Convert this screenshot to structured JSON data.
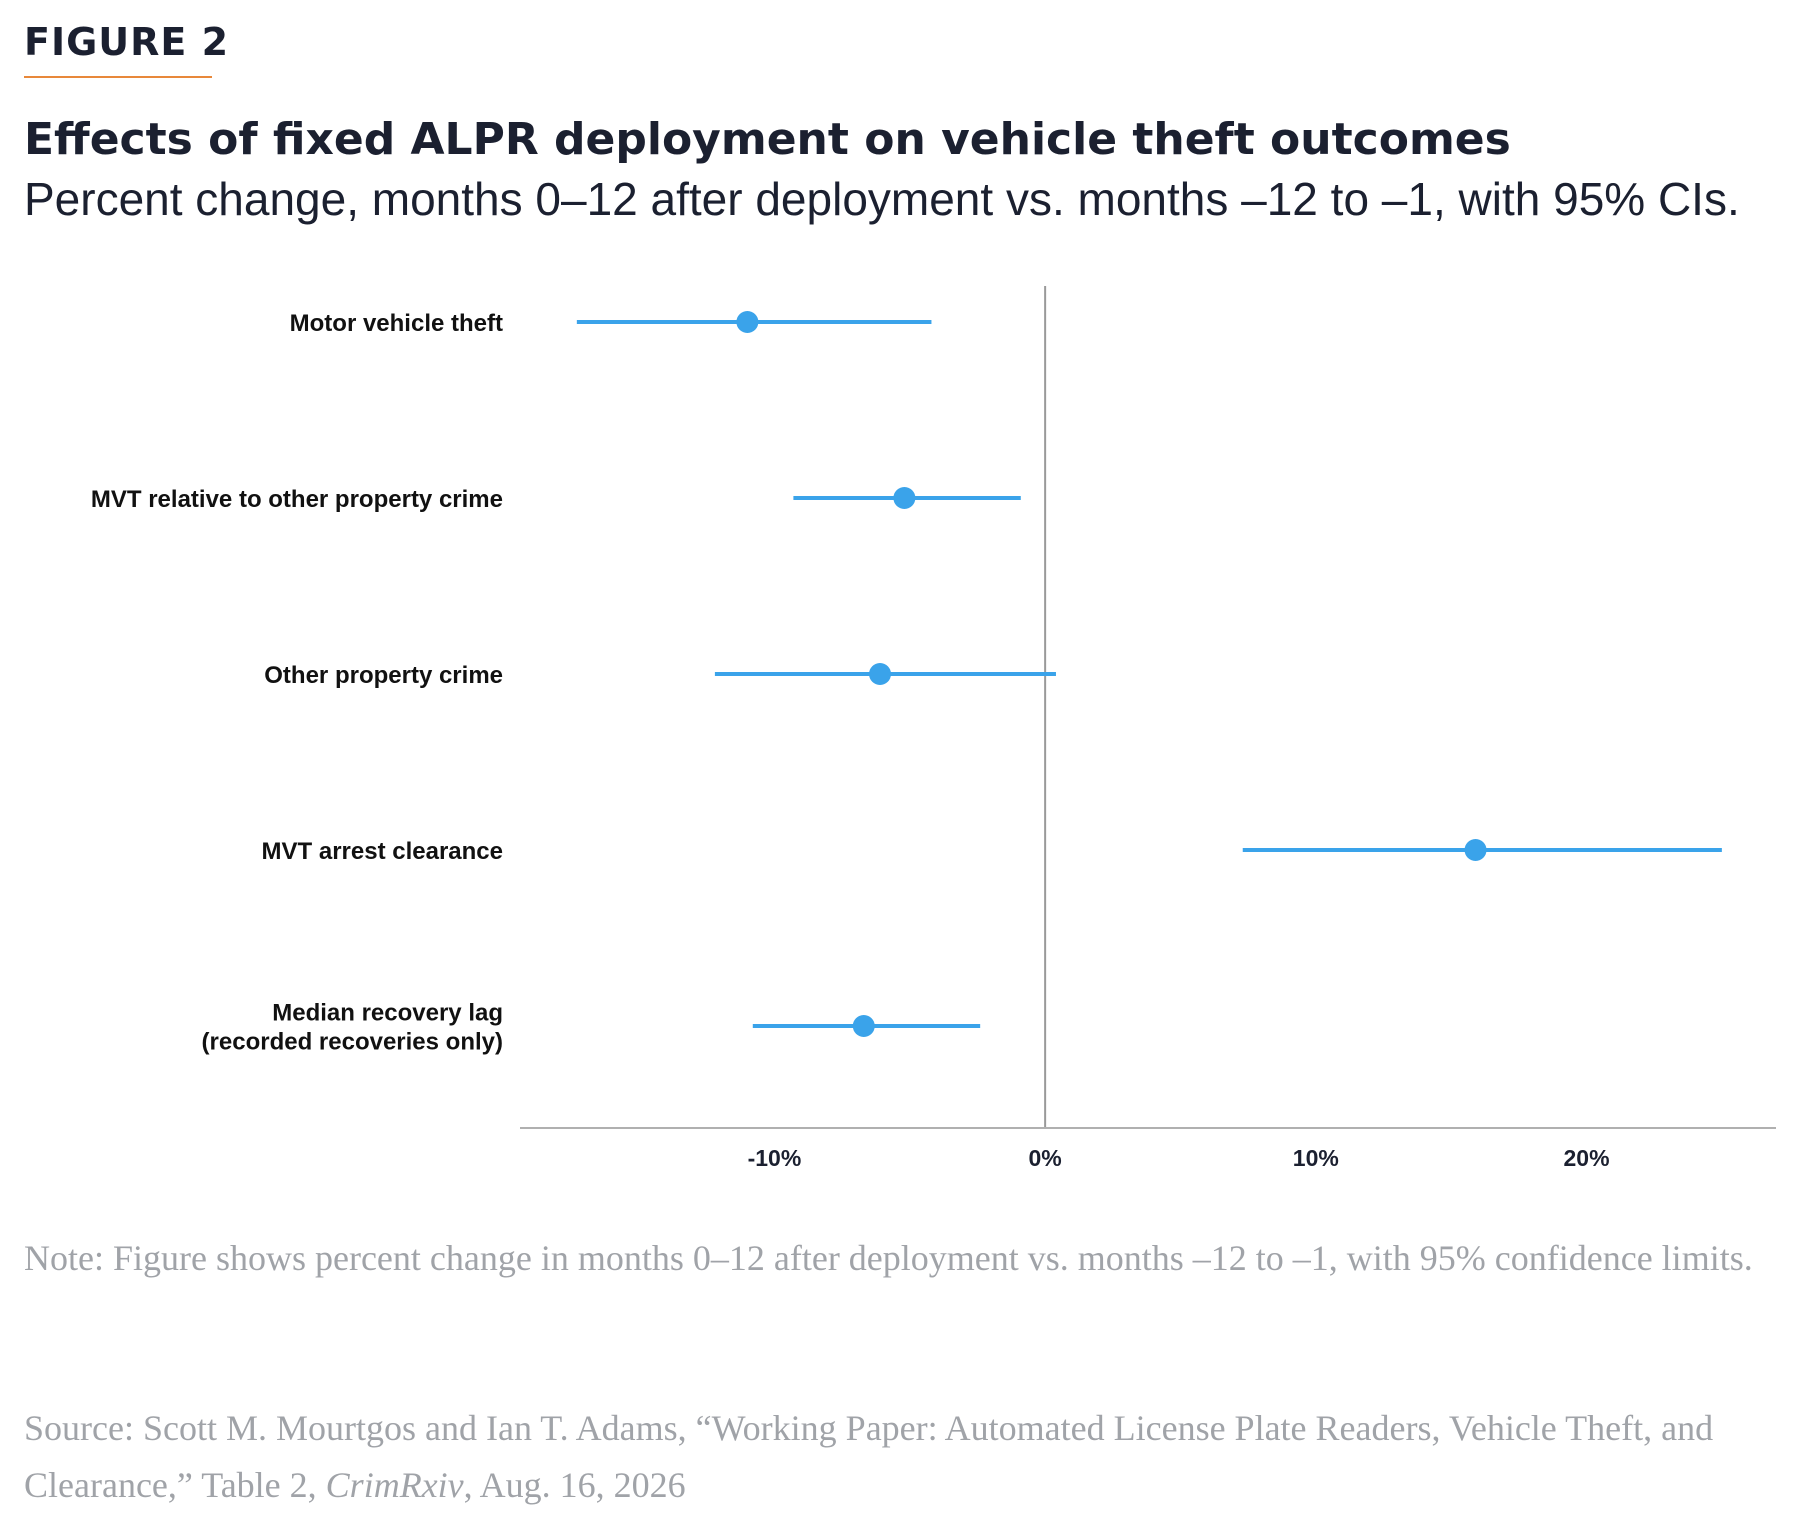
{
  "figure_label": "FIGURE 2",
  "colors": {
    "accent_rule": "#e8883a",
    "series": "#3aa3ea",
    "axis": "#999999",
    "text": "#1b2030",
    "footnote": "#a0a3a8"
  },
  "chart_data": {
    "type": "forest",
    "title": "Effects of fixed ALPR deployment on vehicle theft outcomes",
    "subtitle": "Percent change, months 0–12 after deployment vs. months –12 to –1, with 95% CIs.",
    "xlim": [
      -19.4,
      27.0
    ],
    "xticks": [
      -10,
      0,
      10,
      20
    ],
    "xtick_labels": [
      "-10%",
      "0%",
      "10%",
      "20%"
    ],
    "reference_line": 0,
    "grid": false,
    "categories": [
      {
        "label": [
          "Motor vehicle theft"
        ],
        "estimate": -11.0,
        "ci": [
          -17.3,
          -4.2
        ]
      },
      {
        "label": [
          "MVT relative to other property crime"
        ],
        "estimate": -5.2,
        "ci": [
          -9.3,
          -0.9
        ]
      },
      {
        "label": [
          "Other property crime"
        ],
        "estimate": -6.1,
        "ci": [
          -12.2,
          0.4
        ]
      },
      {
        "label": [
          "MVT arrest clearance"
        ],
        "estimate": 15.9,
        "ci": [
          7.3,
          25.0
        ]
      },
      {
        "label": [
          "Median recovery lag",
          "(recorded recoveries only)"
        ],
        "estimate": -6.7,
        "ci": [
          -10.8,
          -2.4
        ]
      }
    ]
  },
  "note": "Note: Figure shows percent change in months 0–12 after deployment vs. months –12 to –1, with 95% confidence limits.",
  "source": {
    "prefix": "Source: Scott M. Mourtgos and Ian T. Adams, “Working Paper: Automated License Plate Readers, Vehicle Theft, and Clearance,” Table 2, ",
    "journal": "CrimRxiv",
    "suffix": ", Aug. 16, 2026"
  }
}
